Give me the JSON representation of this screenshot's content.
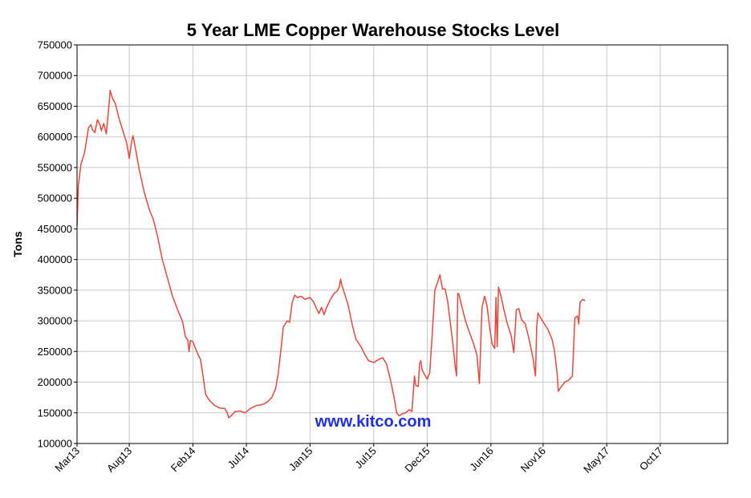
{
  "chart_data": {
    "type": "line",
    "title": "5 Year LME Copper Warehouse Stocks Level",
    "ylabel": "Tons",
    "xlabel": "",
    "ylim": [
      100000,
      750000
    ],
    "xlim": [
      2013.17,
      2018.28
    ],
    "y_ticks": [
      "100000",
      "150000",
      "200000",
      "250000",
      "300000",
      "350000",
      "400000",
      "450000",
      "500000",
      "550000",
      "600000",
      "650000",
      "700000",
      "750000"
    ],
    "x_ticks": [
      {
        "label": "Mar13",
        "x": 2013.17
      },
      {
        "label": "Aug13",
        "x": 2013.58
      },
      {
        "label": "Feb14",
        "x": 2014.08
      },
      {
        "label": "Jul14",
        "x": 2014.5
      },
      {
        "label": "Jan15",
        "x": 2015.0
      },
      {
        "label": "Jul15",
        "x": 2015.5
      },
      {
        "label": "Dec15",
        "x": 2015.92
      },
      {
        "label": "Jun16",
        "x": 2016.42
      },
      {
        "label": "Nov16",
        "x": 2016.83
      },
      {
        "label": "May17",
        "x": 2017.33
      },
      {
        "label": "Oct17",
        "x": 2017.75
      }
    ],
    "grid": true,
    "series": [
      {
        "color": "#e8473c",
        "points": [
          [
            2013.17,
            455000
          ],
          [
            2013.18,
            520000
          ],
          [
            2013.2,
            555000
          ],
          [
            2013.23,
            575000
          ],
          [
            2013.26,
            615000
          ],
          [
            2013.28,
            620000
          ],
          [
            2013.29,
            612000
          ],
          [
            2013.31,
            607000
          ],
          [
            2013.33,
            628000
          ],
          [
            2013.35,
            620000
          ],
          [
            2013.36,
            610000
          ],
          [
            2013.38,
            622000
          ],
          [
            2013.4,
            605000
          ],
          [
            2013.42,
            650000
          ],
          [
            2013.43,
            676000
          ],
          [
            2013.45,
            662000
          ],
          [
            2013.47,
            655000
          ],
          [
            2013.5,
            630000
          ],
          [
            2013.53,
            610000
          ],
          [
            2013.56,
            590000
          ],
          [
            2013.58,
            565000
          ],
          [
            2013.6,
            593000
          ],
          [
            2013.61,
            602000
          ],
          [
            2013.63,
            580000
          ],
          [
            2013.66,
            545000
          ],
          [
            2013.7,
            508000
          ],
          [
            2013.74,
            480000
          ],
          [
            2013.77,
            465000
          ],
          [
            2013.8,
            440000
          ],
          [
            2013.84,
            400000
          ],
          [
            2013.88,
            370000
          ],
          [
            2013.92,
            340000
          ],
          [
            2013.96,
            318000
          ],
          [
            2014.0,
            298000
          ],
          [
            2014.02,
            275000
          ],
          [
            2014.04,
            268000
          ],
          [
            2014.05,
            250000
          ],
          [
            2014.06,
            268000
          ],
          [
            2014.08,
            266000
          ],
          [
            2014.1,
            255000
          ],
          [
            2014.12,
            245000
          ],
          [
            2014.14,
            237000
          ],
          [
            2014.16,
            210000
          ],
          [
            2014.18,
            180000
          ],
          [
            2014.21,
            170000
          ],
          [
            2014.25,
            162000
          ],
          [
            2014.29,
            158000
          ],
          [
            2014.33,
            157000
          ],
          [
            2014.35,
            150000
          ],
          [
            2014.36,
            142000
          ],
          [
            2014.38,
            145000
          ],
          [
            2014.41,
            152000
          ],
          [
            2014.45,
            153000
          ],
          [
            2014.49,
            150000
          ],
          [
            2014.53,
            157000
          ],
          [
            2014.58,
            162000
          ],
          [
            2014.62,
            163000
          ],
          [
            2014.66,
            167000
          ],
          [
            2014.7,
            175000
          ],
          [
            2014.73,
            190000
          ],
          [
            2014.75,
            215000
          ],
          [
            2014.77,
            250000
          ],
          [
            2014.79,
            290000
          ],
          [
            2014.82,
            300000
          ],
          [
            2014.84,
            298000
          ],
          [
            2014.86,
            330000
          ],
          [
            2014.88,
            342000
          ],
          [
            2014.9,
            338000
          ],
          [
            2014.93,
            340000
          ],
          [
            2014.96,
            335000
          ],
          [
            2015.0,
            338000
          ],
          [
            2015.03,
            330000
          ],
          [
            2015.05,
            320000
          ],
          [
            2015.07,
            312000
          ],
          [
            2015.09,
            322000
          ],
          [
            2015.11,
            310000
          ],
          [
            2015.13,
            322000
          ],
          [
            2015.16,
            335000
          ],
          [
            2015.19,
            345000
          ],
          [
            2015.21,
            348000
          ],
          [
            2015.23,
            355000
          ],
          [
            2015.24,
            368000
          ],
          [
            2015.25,
            358000
          ],
          [
            2015.27,
            345000
          ],
          [
            2015.3,
            325000
          ],
          [
            2015.33,
            295000
          ],
          [
            2015.36,
            270000
          ],
          [
            2015.4,
            258000
          ],
          [
            2015.43,
            245000
          ],
          [
            2015.46,
            235000
          ],
          [
            2015.5,
            232000
          ],
          [
            2015.54,
            237000
          ],
          [
            2015.57,
            240000
          ],
          [
            2015.6,
            230000
          ],
          [
            2015.63,
            205000
          ],
          [
            2015.66,
            175000
          ],
          [
            2015.68,
            150000
          ],
          [
            2015.7,
            145000
          ],
          [
            2015.72,
            148000
          ],
          [
            2015.75,
            150000
          ],
          [
            2015.78,
            155000
          ],
          [
            2015.8,
            152000
          ],
          [
            2015.82,
            210000
          ],
          [
            2015.83,
            195000
          ],
          [
            2015.85,
            193000
          ],
          [
            2015.86,
            230000
          ],
          [
            2015.87,
            235000
          ],
          [
            2015.88,
            220000
          ],
          [
            2015.9,
            212000
          ],
          [
            2015.92,
            205000
          ],
          [
            2015.94,
            215000
          ],
          [
            2015.96,
            280000
          ],
          [
            2015.98,
            350000
          ],
          [
            2016.0,
            362000
          ],
          [
            2016.02,
            375000
          ],
          [
            2016.04,
            352000
          ],
          [
            2016.06,
            352000
          ],
          [
            2016.08,
            333000
          ],
          [
            2016.1,
            300000
          ],
          [
            2016.12,
            265000
          ],
          [
            2016.14,
            225000
          ],
          [
            2016.15,
            210000
          ],
          [
            2016.16,
            345000
          ],
          [
            2016.17,
            343000
          ],
          [
            2016.19,
            325000
          ],
          [
            2016.22,
            300000
          ],
          [
            2016.25,
            282000
          ],
          [
            2016.28,
            265000
          ],
          [
            2016.31,
            245000
          ],
          [
            2016.33,
            198000
          ],
          [
            2016.35,
            322000
          ],
          [
            2016.37,
            340000
          ],
          [
            2016.39,
            325000
          ],
          [
            2016.41,
            290000
          ],
          [
            2016.43,
            262000
          ],
          [
            2016.45,
            255000
          ],
          [
            2016.46,
            338000
          ],
          [
            2016.47,
            258000
          ],
          [
            2016.48,
            355000
          ],
          [
            2016.5,
            340000
          ],
          [
            2016.52,
            320000
          ],
          [
            2016.55,
            295000
          ],
          [
            2016.58,
            275000
          ],
          [
            2016.6,
            248000
          ],
          [
            2016.62,
            318000
          ],
          [
            2016.64,
            320000
          ],
          [
            2016.66,
            302000
          ],
          [
            2016.69,
            295000
          ],
          [
            2016.72,
            270000
          ],
          [
            2016.75,
            240000
          ],
          [
            2016.77,
            210000
          ],
          [
            2016.78,
            290000
          ],
          [
            2016.79,
            313000
          ],
          [
            2016.81,
            305000
          ],
          [
            2016.84,
            295000
          ],
          [
            2016.87,
            285000
          ],
          [
            2016.9,
            270000
          ],
          [
            2016.92,
            250000
          ],
          [
            2016.94,
            215000
          ],
          [
            2016.95,
            185000
          ],
          [
            2016.97,
            192000
          ],
          [
            2017.0,
            200000
          ],
          [
            2017.03,
            203000
          ],
          [
            2017.06,
            210000
          ],
          [
            2017.08,
            305000
          ],
          [
            2017.1,
            308000
          ],
          [
            2017.11,
            295000
          ],
          [
            2017.12,
            330000
          ],
          [
            2017.14,
            335000
          ],
          [
            2017.16,
            333000
          ]
        ]
      }
    ],
    "annotations": [
      {
        "text": "www.kitco.com",
        "color": "#1f2fe6"
      }
    ]
  }
}
